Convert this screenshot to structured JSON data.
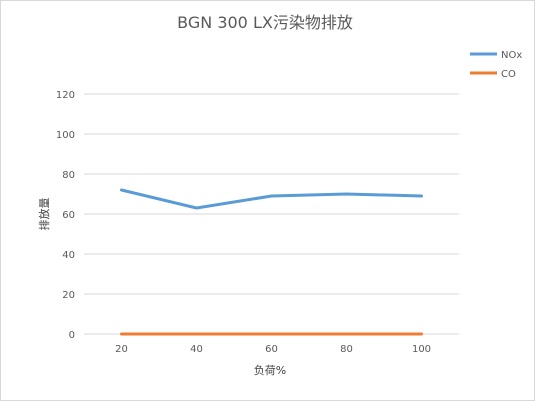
{
  "chart_data": {
    "type": "line",
    "title": "BGN 300 LX污染物排放",
    "xlabel": "负荷%",
    "ylabel": "排放量",
    "categories": [
      "20",
      "40",
      "60",
      "80",
      "100"
    ],
    "ylim": [
      0,
      120
    ],
    "yticks": [
      0,
      20,
      40,
      60,
      80,
      100,
      120
    ],
    "grid": true,
    "legend_position": "top-right",
    "series": [
      {
        "name": "NOx",
        "color": "#5B9BD5",
        "values": [
          72,
          63,
          69,
          70,
          69
        ]
      },
      {
        "name": "CO",
        "color": "#ED7D31",
        "values": [
          0,
          0,
          0,
          0,
          0
        ]
      }
    ]
  }
}
